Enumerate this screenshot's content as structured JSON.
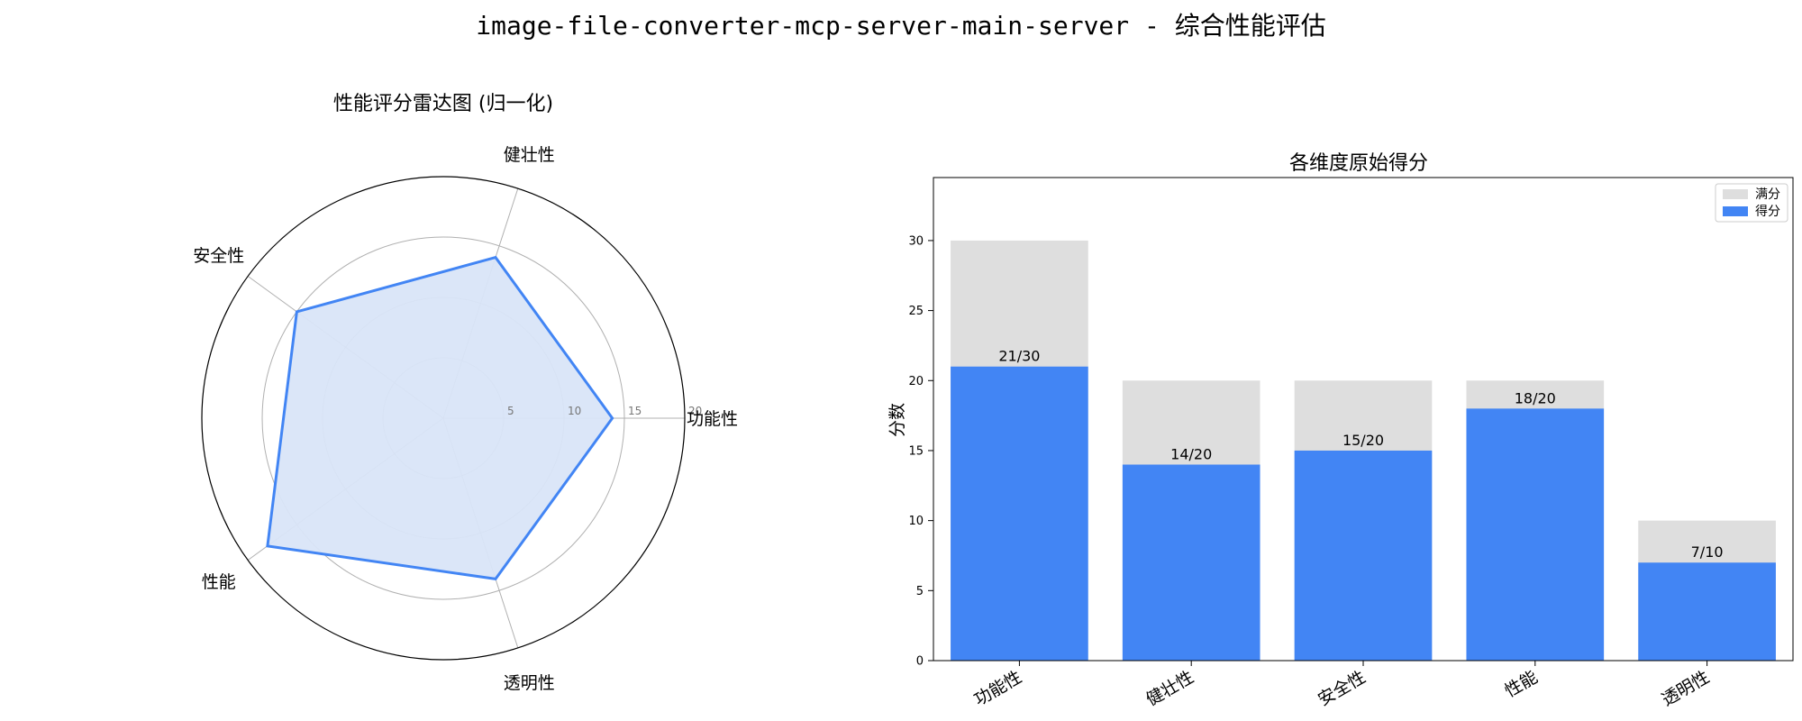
{
  "title": "image-file-converter-mcp-server-main-server - 综合性能评估",
  "colors": {
    "score": "#4285f4",
    "max": "#dedede",
    "radar_fill": "#d9e5f8",
    "grid": "#b0b0b0"
  },
  "chart_data": [
    {
      "type": "radar",
      "title": "性能评分雷达图 (归一化)",
      "categories": [
        "功能性",
        "健壮性",
        "安全性",
        "性能",
        "透明性"
      ],
      "values": [
        14,
        14,
        15,
        18,
        14
      ],
      "rlim": [
        0,
        20
      ],
      "rticks": [
        5,
        10,
        15,
        20
      ],
      "rtick_labels": [
        "5",
        "10",
        "15",
        "20"
      ]
    },
    {
      "type": "bar",
      "title": "各维度原始得分",
      "categories": [
        "功能性",
        "健壮性",
        "安全性",
        "性能",
        "透明性"
      ],
      "series": [
        {
          "name": "满分",
          "values": [
            30,
            20,
            20,
            20,
            10
          ]
        },
        {
          "name": "得分",
          "values": [
            21,
            14,
            15,
            18,
            7
          ]
        }
      ],
      "data_labels": [
        "21/30",
        "14/20",
        "15/20",
        "18/20",
        "7/10"
      ],
      "ylabel": "分数",
      "xlabel": "",
      "ylim": [
        0,
        34.5
      ],
      "yticks": [
        0,
        5,
        10,
        15,
        20,
        25,
        30
      ],
      "legend_position": "upper-right"
    }
  ]
}
